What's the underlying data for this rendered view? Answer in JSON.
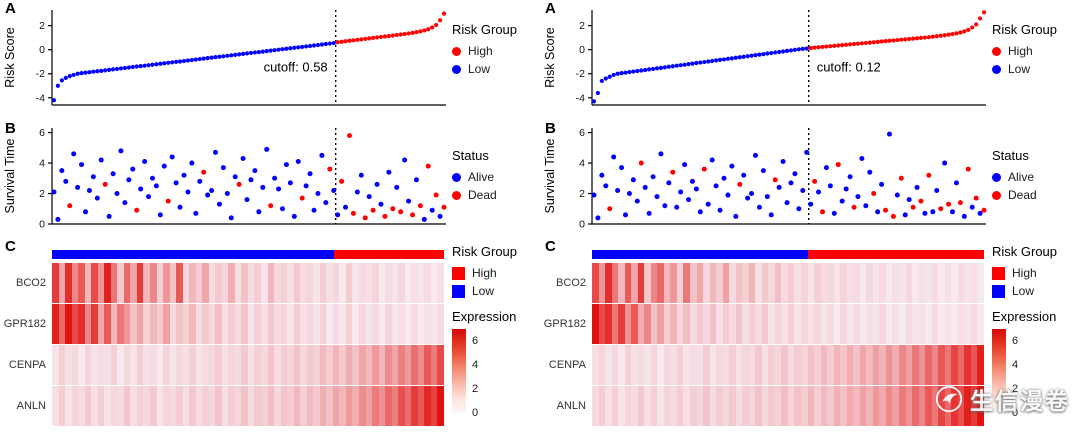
{
  "panel_labels": [
    "A",
    "B",
    "C"
  ],
  "watermark": {
    "text": "生信漫卷"
  },
  "colors": {
    "high": "#FF0000",
    "low": "#0000FF",
    "alive": "#0000FF",
    "dead": "#FF0000",
    "heat_low": "#F8F4FB",
    "heat_high": "#E11410",
    "axis": "#000000"
  },
  "legends": {
    "risk_group": {
      "title": "Risk Group",
      "items": [
        {
          "label": "High",
          "color": "high"
        },
        {
          "label": "Low",
          "color": "low"
        }
      ]
    },
    "status": {
      "title": "Status",
      "items": [
        {
          "label": "Alive",
          "color": "alive"
        },
        {
          "label": "Dead",
          "color": "dead"
        }
      ]
    },
    "expression": {
      "title": "Expression",
      "ticks": [
        6,
        4,
        2,
        0
      ],
      "range": [
        0,
        7
      ]
    }
  },
  "chart_data": [
    {
      "panel": "left",
      "risk_plot": {
        "type": "scatter",
        "ylabel": "Risk Score",
        "yticks": [
          -4,
          -2,
          0,
          2
        ],
        "ylim": [
          -4.6,
          3.3
        ],
        "cutoff": 0.58,
        "cutoff_label": "cutoff: 0.58",
        "cutoff_index": 72,
        "label_side": "left",
        "values": [
          -4.2,
          -3.0,
          -2.55,
          -2.35,
          -2.2,
          -2.1,
          -2.0,
          -1.95,
          -1.91,
          -1.87,
          -1.83,
          -1.79,
          -1.76,
          -1.72,
          -1.68,
          -1.64,
          -1.6,
          -1.56,
          -1.52,
          -1.48,
          -1.44,
          -1.4,
          -1.37,
          -1.33,
          -1.29,
          -1.25,
          -1.21,
          -1.17,
          -1.13,
          -1.09,
          -1.05,
          -1.01,
          -0.98,
          -0.94,
          -0.9,
          -0.86,
          -0.82,
          -0.78,
          -0.74,
          -0.7,
          -0.66,
          -0.62,
          -0.59,
          -0.55,
          -0.51,
          -0.47,
          -0.43,
          -0.39,
          -0.35,
          -0.31,
          -0.27,
          -0.23,
          -0.2,
          -0.16,
          -0.12,
          -0.08,
          -0.04,
          0.0,
          0.04,
          0.08,
          0.12,
          0.16,
          0.19,
          0.23,
          0.27,
          0.31,
          0.35,
          0.39,
          0.43,
          0.47,
          0.51,
          0.55,
          0.62,
          0.66,
          0.7,
          0.74,
          0.78,
          0.82,
          0.86,
          0.9,
          0.94,
          0.98,
          1.02,
          1.06,
          1.1,
          1.14,
          1.18,
          1.22,
          1.26,
          1.3,
          1.35,
          1.4,
          1.46,
          1.52,
          1.6,
          1.7,
          1.85,
          2.05,
          2.45,
          3.0
        ]
      },
      "survival_plot": {
        "type": "scatter",
        "ylabel": "Survival Time",
        "yticks": [
          0,
          2,
          4,
          6
        ],
        "ylim": [
          0,
          6.3
        ],
        "values": [
          2.1,
          0.3,
          3.5,
          2.8,
          1.2,
          4.6,
          2.4,
          3.9,
          0.8,
          2.2,
          3.1,
          1.7,
          4.2,
          2.6,
          0.5,
          3.3,
          2.0,
          4.8,
          1.4,
          2.9,
          3.6,
          0.9,
          2.3,
          4.1,
          1.8,
          3.0,
          2.5,
          0.6,
          3.8,
          1.5,
          4.4,
          2.7,
          1.1,
          3.2,
          2.1,
          4.0,
          0.7,
          2.8,
          3.4,
          1.9,
          2.2,
          4.7,
          1.3,
          3.7,
          2.0,
          0.4,
          3.1,
          2.6,
          4.3,
          1.6,
          2.9,
          3.5,
          0.8,
          2.4,
          4.9,
          1.2,
          3.0,
          2.3,
          1.0,
          3.9,
          2.7,
          0.5,
          4.1,
          1.7,
          2.5,
          3.3,
          0.9,
          2.0,
          4.5,
          1.4,
          3.6,
          2.2,
          0.6,
          2.8,
          1.1,
          5.8,
          0.7,
          2.1,
          3.2,
          0.4,
          1.8,
          0.9,
          2.6,
          1.3,
          0.5,
          3.4,
          1.0,
          2.4,
          0.8,
          4.2,
          1.5,
          0.6,
          2.9,
          1.2,
          0.3,
          3.8,
          0.9,
          1.9,
          0.5,
          1.1
        ],
        "dead_indices": [
          4,
          13,
          21,
          29,
          38,
          47,
          55,
          63,
          70,
          73,
          75,
          76,
          79,
          81,
          84,
          86,
          88,
          91,
          93,
          95,
          97,
          99
        ]
      },
      "heatmap": {
        "type": "heatmap",
        "genes": [
          "BCO2",
          "GPR182",
          "CENPA",
          "ANLN"
        ],
        "value_range": [
          0,
          7
        ],
        "rows": [
          [
            5.5,
            2.0,
            6.0,
            3.0,
            4.5,
            1.5,
            5.0,
            2.5,
            6.5,
            3.5,
            1.0,
            4.0,
            2.0,
            5.5,
            1.5,
            3.0,
            0.8,
            2.5,
            1.2,
            4.5,
            0.6,
            1.5,
            0.9,
            2.0,
            0.5,
            1.0,
            0.7,
            1.8,
            0.4,
            1.2,
            0.5,
            0.9,
            0.3,
            1.5,
            0.6,
            0.8,
            0.4,
            1.0,
            0.5,
            0.7,
            0.3,
            0.8,
            0.4,
            0.6,
            0.2,
            0.9,
            0.3,
            0.5,
            0.4,
            0.7,
            0.2,
            0.5,
            0.3,
            0.6,
            0.2,
            0.4,
            0.3,
            0.5,
            0.2,
            0.4
          ],
          [
            6.5,
            4.0,
            7.0,
            5.0,
            6.0,
            3.0,
            5.5,
            2.0,
            4.5,
            1.5,
            3.5,
            2.5,
            1.2,
            2.0,
            0.8,
            1.5,
            1.0,
            2.2,
            0.6,
            1.2,
            0.8,
            1.5,
            0.5,
            1.0,
            0.6,
            1.3,
            0.4,
            0.9,
            0.5,
            1.1,
            0.3,
            0.8,
            0.4,
            1.0,
            0.5,
            0.7,
            0.3,
            0.9,
            0.4,
            0.6,
            0.3,
            0.7,
            0.2,
            0.5,
            0.3,
            0.8,
            0.2,
            0.6,
            0.3,
            0.5,
            0.2,
            0.6,
            0.3,
            0.4,
            0.2,
            0.5,
            0.2,
            0.4,
            0.3,
            0.5
          ],
          [
            0.3,
            0.8,
            0.4,
            0.6,
            0.2,
            0.7,
            0.3,
            0.5,
            0.4,
            0.8,
            0.2,
            0.6,
            0.3,
            0.9,
            0.4,
            0.5,
            0.2,
            0.7,
            0.3,
            0.6,
            0.4,
            0.8,
            0.3,
            0.5,
            0.6,
            0.9,
            0.4,
            0.7,
            0.5,
            1.0,
            0.4,
            0.8,
            0.6,
            1.1,
            0.5,
            0.9,
            0.7,
            1.2,
            0.6,
            1.0,
            0.8,
            1.4,
            0.9,
            1.6,
            1.0,
            1.8,
            1.2,
            2.0,
            1.4,
            2.4,
            1.6,
            2.8,
            2.0,
            3.2,
            2.4,
            3.8,
            2.8,
            4.5,
            3.4,
            5.0
          ],
          [
            0.4,
            0.9,
            0.3,
            0.7,
            0.5,
            1.0,
            0.4,
            0.8,
            0.3,
            0.6,
            0.5,
            1.1,
            0.4,
            0.8,
            0.6,
            1.0,
            0.3,
            0.7,
            0.5,
            0.9,
            0.4,
            1.0,
            0.5,
            0.8,
            0.6,
            1.1,
            0.4,
            0.9,
            0.7,
            1.2,
            0.5,
            1.0,
            0.8,
            1.3,
            0.6,
            1.1,
            0.9,
            1.5,
            0.8,
            1.4,
            1.0,
            1.8,
            1.2,
            2.0,
            1.5,
            2.4,
            1.8,
            2.8,
            2.2,
            3.4,
            2.6,
            4.0,
            3.2,
            4.8,
            3.8,
            5.5,
            4.5,
            6.2,
            5.2,
            7.0
          ]
        ]
      }
    },
    {
      "panel": "right",
      "risk_plot": {
        "type": "scatter",
        "ylabel": "Risk Score",
        "yticks": [
          -4,
          -2,
          0,
          2
        ],
        "ylim": [
          -4.6,
          3.3
        ],
        "cutoff": 0.12,
        "cutoff_label": "cutoff: 0.12",
        "cutoff_index": 55,
        "label_side": "right",
        "values": [
          -4.3,
          -3.6,
          -2.6,
          -2.4,
          -2.25,
          -2.1,
          -2.0,
          -1.95,
          -1.91,
          -1.86,
          -1.82,
          -1.77,
          -1.73,
          -1.69,
          -1.64,
          -1.6,
          -1.55,
          -1.51,
          -1.47,
          -1.42,
          -1.38,
          -1.33,
          -1.29,
          -1.25,
          -1.2,
          -1.16,
          -1.11,
          -1.07,
          -1.03,
          -0.98,
          -0.94,
          -0.89,
          -0.85,
          -0.81,
          -0.76,
          -0.72,
          -0.67,
          -0.63,
          -0.59,
          -0.54,
          -0.5,
          -0.45,
          -0.41,
          -0.37,
          -0.32,
          -0.28,
          -0.23,
          -0.19,
          -0.15,
          -0.1,
          -0.06,
          -0.01,
          0.03,
          0.07,
          0.1,
          0.14,
          0.17,
          0.2,
          0.23,
          0.26,
          0.29,
          0.32,
          0.35,
          0.38,
          0.41,
          0.44,
          0.47,
          0.5,
          0.53,
          0.56,
          0.59,
          0.62,
          0.65,
          0.68,
          0.71,
          0.74,
          0.77,
          0.8,
          0.83,
          0.86,
          0.89,
          0.92,
          0.95,
          0.98,
          1.01,
          1.04,
          1.08,
          1.12,
          1.16,
          1.2,
          1.25,
          1.3,
          1.36,
          1.43,
          1.52,
          1.65,
          1.85,
          2.1,
          2.6,
          3.1
        ]
      },
      "survival_plot": {
        "type": "scatter",
        "ylabel": "Survival Time",
        "yticks": [
          0,
          2,
          4,
          6
        ],
        "ylim": [
          0,
          6.3
        ],
        "values": [
          1.9,
          0.4,
          3.2,
          2.5,
          1.0,
          4.4,
          2.2,
          3.7,
          0.6,
          2.0,
          2.9,
          1.5,
          4.0,
          2.4,
          0.7,
          3.1,
          1.8,
          4.6,
          1.2,
          2.7,
          3.4,
          1.1,
          2.1,
          3.9,
          1.6,
          2.8,
          2.3,
          0.8,
          3.6,
          1.3,
          4.2,
          2.5,
          0.9,
          3.0,
          1.9,
          3.8,
          0.5,
          2.6,
          3.2,
          1.7,
          2.0,
          4.5,
          1.1,
          3.5,
          1.8,
          0.6,
          2.9,
          2.4,
          4.1,
          1.4,
          2.7,
          3.3,
          1.0,
          2.2,
          4.7,
          1.3,
          2.8,
          2.1,
          0.8,
          3.7,
          2.5,
          0.7,
          3.9,
          1.5,
          2.3,
          3.1,
          1.1,
          1.8,
          4.3,
          1.2,
          3.4,
          2.0,
          0.8,
          2.6,
          0.9,
          5.9,
          0.5,
          1.9,
          3.0,
          0.6,
          1.6,
          1.1,
          2.4,
          1.5,
          0.7,
          3.2,
          0.8,
          2.2,
          1.0,
          4.0,
          1.3,
          0.8,
          2.7,
          1.4,
          0.5,
          3.6,
          1.1,
          1.7,
          0.7,
          0.9
        ],
        "dead_indices": [
          4,
          12,
          20,
          28,
          37,
          46,
          56,
          58,
          62,
          66,
          71,
          74,
          76,
          78,
          81,
          83,
          85,
          88,
          90,
          93,
          95,
          97,
          99
        ]
      },
      "heatmap": {
        "type": "heatmap",
        "genes": [
          "BCO2",
          "GPR182",
          "CENPA",
          "ANLN"
        ],
        "value_range": [
          0,
          7
        ],
        "rows": [
          [
            5.0,
            2.5,
            6.0,
            3.5,
            1.5,
            4.5,
            2.0,
            5.5,
            1.0,
            3.0,
            4.0,
            1.5,
            2.5,
            0.8,
            3.5,
            1.2,
            2.0,
            0.6,
            1.5,
            0.9,
            2.2,
            0.5,
            1.2,
            0.8,
            1.6,
            0.4,
            1.0,
            0.6,
            1.3,
            0.5,
            0.9,
            0.4,
            0.7,
            0.3,
            0.8,
            0.5,
            0.6,
            0.3,
            0.7,
            0.4,
            0.5,
            0.2,
            0.6,
            0.3,
            0.5,
            0.2,
            0.4,
            0.3,
            0.6,
            0.2,
            0.4,
            0.3,
            0.5,
            0.2,
            0.4,
            0.2,
            0.5,
            0.3,
            0.4,
            0.2
          ],
          [
            7.0,
            5.0,
            6.0,
            3.5,
            5.5,
            2.5,
            4.5,
            1.8,
            3.0,
            1.2,
            2.2,
            0.9,
            1.6,
            0.7,
            1.3,
            0.5,
            1.0,
            0.6,
            1.2,
            0.4,
            0.9,
            0.5,
            1.1,
            0.4,
            0.8,
            0.5,
            1.0,
            0.3,
            0.7,
            0.4,
            0.8,
            0.3,
            0.6,
            0.4,
            0.7,
            0.3,
            0.5,
            0.2,
            0.6,
            0.3,
            0.5,
            0.2,
            0.4,
            0.3,
            0.6,
            0.2,
            0.4,
            0.2,
            0.5,
            0.3,
            0.4,
            0.2,
            0.5,
            0.2,
            0.3,
            0.2,
            0.4,
            0.3,
            0.5,
            0.2
          ],
          [
            0.4,
            0.7,
            0.3,
            0.6,
            0.2,
            0.8,
            0.4,
            0.5,
            0.3,
            0.7,
            0.2,
            0.6,
            0.4,
            0.8,
            0.3,
            0.5,
            0.4,
            0.9,
            0.3,
            0.6,
            0.5,
            0.8,
            0.4,
            0.7,
            0.5,
            1.0,
            0.4,
            0.8,
            0.6,
            1.1,
            0.5,
            0.9,
            0.7,
            1.2,
            0.8,
            1.4,
            0.9,
            1.6,
            1.1,
            1.8,
            1.2,
            2.0,
            1.4,
            2.2,
            1.6,
            2.6,
            1.8,
            3.0,
            2.2,
            3.5,
            2.6,
            4.0,
            3.0,
            4.6,
            3.5,
            5.2,
            4.0,
            5.8,
            4.6,
            6.5
          ],
          [
            0.5,
            0.9,
            0.4,
            0.8,
            0.3,
            0.7,
            0.5,
            1.0,
            0.4,
            0.8,
            0.3,
            0.7,
            0.5,
            0.9,
            0.4,
            0.8,
            0.6,
            1.1,
            0.5,
            0.9,
            0.6,
            1.0,
            0.5,
            0.9,
            0.7,
            1.2,
            0.6,
            1.0,
            0.8,
            1.3,
            0.7,
            1.2,
            0.9,
            1.5,
            0.8,
            1.4,
            1.0,
            1.7,
            1.2,
            1.9,
            1.4,
            2.2,
            1.6,
            2.5,
            1.9,
            2.9,
            2.2,
            3.4,
            2.6,
            3.9,
            3.0,
            4.5,
            3.5,
            5.2,
            4.0,
            5.8,
            4.8,
            6.5,
            5.5,
            7.0
          ]
        ]
      }
    }
  ]
}
